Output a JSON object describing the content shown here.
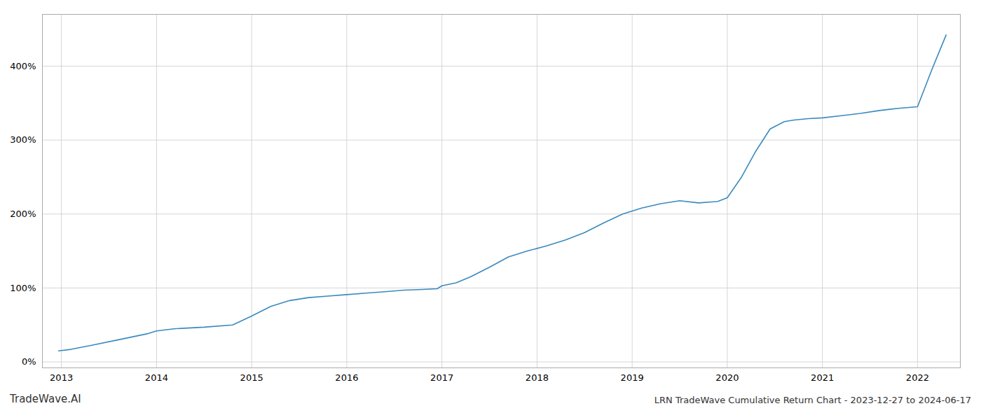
{
  "chart_data": {
    "type": "line",
    "title": "LRN TradeWave Cumulative Return Chart - 2023-12-27 to 2024-06-17",
    "annotations": [
      "TradeWave.AI"
    ],
    "color": "#3a8abf",
    "x": [
      2012.97,
      2013.1,
      2013.3,
      2013.6,
      2013.9,
      2014.0,
      2014.2,
      2014.5,
      2014.8,
      2015.0,
      2015.2,
      2015.4,
      2015.6,
      2015.8,
      2016.0,
      2016.2,
      2016.4,
      2016.6,
      2016.8,
      2016.95,
      2017.0,
      2017.15,
      2017.3,
      2017.5,
      2017.7,
      2017.9,
      2018.1,
      2018.3,
      2018.5,
      2018.7,
      2018.9,
      2019.1,
      2019.3,
      2019.5,
      2019.7,
      2019.9,
      2020.0,
      2020.15,
      2020.3,
      2020.45,
      2020.6,
      2020.7,
      2020.85,
      2021.0,
      2021.2,
      2021.4,
      2021.6,
      2021.8,
      2022.0,
      2022.15,
      2022.3
    ],
    "values": [
      15,
      17,
      22,
      30,
      38,
      42,
      45,
      47,
      50,
      62,
      75,
      83,
      87,
      89,
      91,
      93,
      95,
      97,
      98,
      99,
      103,
      107,
      115,
      128,
      142,
      150,
      157,
      165,
      175,
      188,
      200,
      208,
      214,
      218,
      215,
      217,
      222,
      250,
      285,
      315,
      325,
      327,
      329,
      330,
      333,
      336,
      340,
      343,
      345,
      395,
      442
    ],
    "xlim": [
      2012.8,
      2022.45
    ],
    "xticks": [
      2013,
      2014,
      2015,
      2016,
      2017,
      2018,
      2019,
      2020,
      2021,
      2022
    ],
    "ylim": [
      -8,
      470
    ],
    "yticks": [
      {
        "value": 0,
        "label": "0%"
      },
      {
        "value": 100,
        "label": "100%"
      },
      {
        "value": 200,
        "label": "200%"
      },
      {
        "value": 300,
        "label": "300%"
      },
      {
        "value": 400,
        "label": "400%"
      }
    ],
    "grid": true
  }
}
